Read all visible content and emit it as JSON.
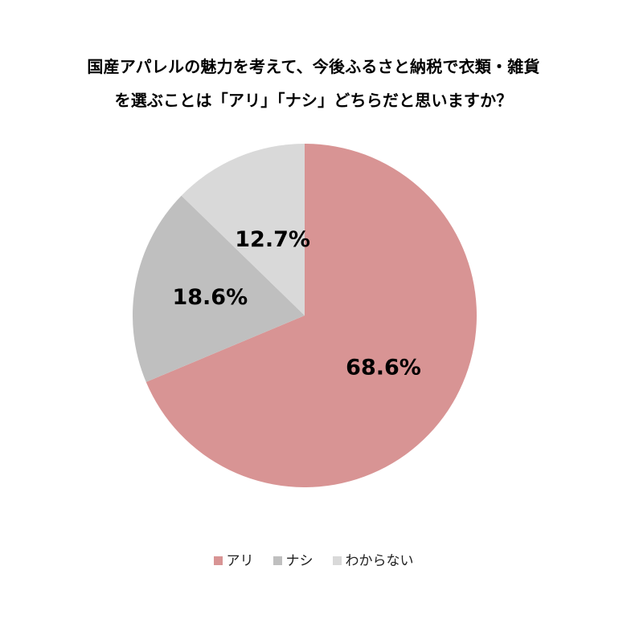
{
  "title": {
    "line1": "国産アパレルの魅力を考えて、今後ふるさと納税で衣類・雑貨",
    "line2": "を選ぶことは「アリ」「ナシ」どちらだと思いますか？"
  },
  "legend": {
    "items": [
      {
        "label": "アリ",
        "color": "#D89494"
      },
      {
        "label": "ナシ",
        "color": "#BFBFBF"
      },
      {
        "label": "わからない",
        "color": "#D9D9D9"
      }
    ]
  },
  "chart_data": {
    "type": "pie",
    "title": "国産アパレルの魅力を考えて、今後ふるさと納税で衣類・雑貨を選ぶことは「アリ」「ナシ」どちらだと思いますか？",
    "categories": [
      "アリ",
      "ナシ",
      "わからない"
    ],
    "values": [
      68.6,
      18.6,
      12.7
    ],
    "unit": "%",
    "data_labels": [
      "68.6%",
      "18.6%",
      "12.7%"
    ],
    "colors": [
      "#D89494",
      "#BFBFBF",
      "#D9D9D9"
    ],
    "start_angle": "12 o'clock",
    "direction": "clockwise",
    "legend_position": "bottom"
  }
}
